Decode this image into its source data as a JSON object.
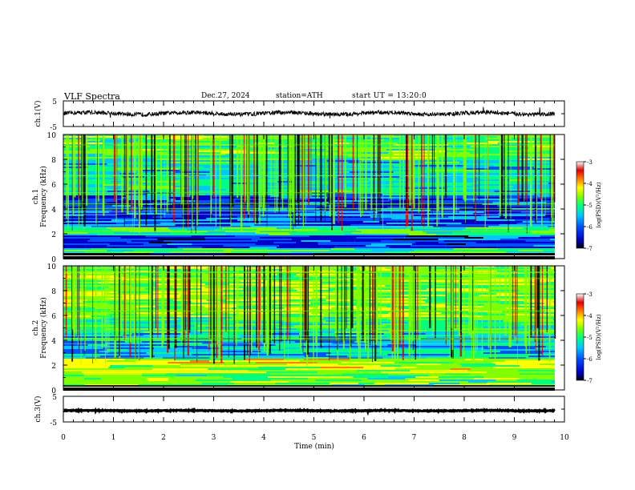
{
  "header": {
    "title": "VLF  Spectra",
    "date": "Dec.27, 2024",
    "station": "station=ATH",
    "start": "start  UT  =    13:20:0"
  },
  "colors": {
    "background": "#ffffff",
    "trace": "#000000",
    "colormap": [
      "#000000",
      "#0000c8",
      "#0050ff",
      "#00c8ff",
      "#00ff80",
      "#80ff00",
      "#ffff00",
      "#ff8000",
      "#e00000",
      "#ffffff"
    ]
  },
  "chart_data": [
    {
      "panel": "ch1-waveform",
      "type": "line",
      "ylabel": "ch.1(V)",
      "yticks": [
        "5",
        "-5"
      ],
      "ylim": [
        -5,
        5
      ],
      "xlim": [
        0,
        10
      ],
      "description_values": {
        "baseline": 0.1,
        "noise_amplitude": 1.0,
        "end_min": 9.8
      }
    },
    {
      "panel": "ch1-spectrogram",
      "type": "heatmap",
      "ylabel": "ch.1\nFrequency (kHz)",
      "yticks": [
        "0",
        "2",
        "4",
        "6",
        "8",
        "10"
      ],
      "ylim": [
        0,
        10
      ],
      "xlim": [
        0,
        10
      ],
      "colorbar": {
        "label": "log(PSD)(V²/Hz)",
        "ticks": [
          "-3",
          "-4",
          "-5",
          "-6",
          "-7"
        ],
        "range": [
          -7,
          -3
        ]
      },
      "bands_khz": [
        {
          "from": 0,
          "to": 0.5,
          "level": -7
        },
        {
          "from": 0.5,
          "to": 0.9,
          "level": -5.3
        },
        {
          "from": 0.9,
          "to": 1.9,
          "level": -6.3
        },
        {
          "from": 1.9,
          "to": 2.6,
          "level": -5.2
        },
        {
          "from": 2.6,
          "to": 3.0,
          "level": -6.0
        },
        {
          "from": 3.0,
          "to": 5.2,
          "level": -6.2
        },
        {
          "from": 5.2,
          "to": 8.0,
          "level": -5.5
        },
        {
          "from": 8.0,
          "to": 10.0,
          "level": -5.0
        }
      ]
    },
    {
      "panel": "ch2-spectrogram",
      "type": "heatmap",
      "ylabel": "ch.2\nFrequency (kHz)",
      "yticks": [
        "0",
        "2",
        "4",
        "6",
        "8",
        "10"
      ],
      "ylim": [
        0,
        10
      ],
      "xlim": [
        0,
        10
      ],
      "colorbar": {
        "label": "log(PSD)(V²/Hz)",
        "ticks": [
          "-3",
          "-4",
          "-5",
          "-6",
          "-7"
        ],
        "range": [
          -7,
          -3
        ]
      },
      "bands_khz": [
        {
          "from": 0,
          "to": 0.3,
          "level": -7
        },
        {
          "from": 0.3,
          "to": 1.4,
          "level": -5.0
        },
        {
          "from": 1.4,
          "to": 2.6,
          "level": -4.6
        },
        {
          "from": 2.6,
          "to": 4.6,
          "level": -5.6
        },
        {
          "from": 4.6,
          "to": 6.0,
          "level": -5.2
        },
        {
          "from": 6.0,
          "to": 10.0,
          "level": -4.8
        }
      ]
    },
    {
      "panel": "ch3-waveform",
      "type": "line",
      "ylabel": "ch.3(V)",
      "yticks": [
        "5",
        "-5"
      ],
      "ylim": [
        -5,
        5
      ],
      "xlim": [
        0,
        10
      ],
      "description_values": {
        "baseline": -0.6,
        "noise_amplitude": 0.2,
        "end_min": 9.8
      }
    }
  ],
  "xaxis": {
    "label": "Time  (min)",
    "ticks": [
      "0",
      "1",
      "2",
      "3",
      "4",
      "5",
      "6",
      "7",
      "8",
      "9",
      "10"
    ]
  }
}
